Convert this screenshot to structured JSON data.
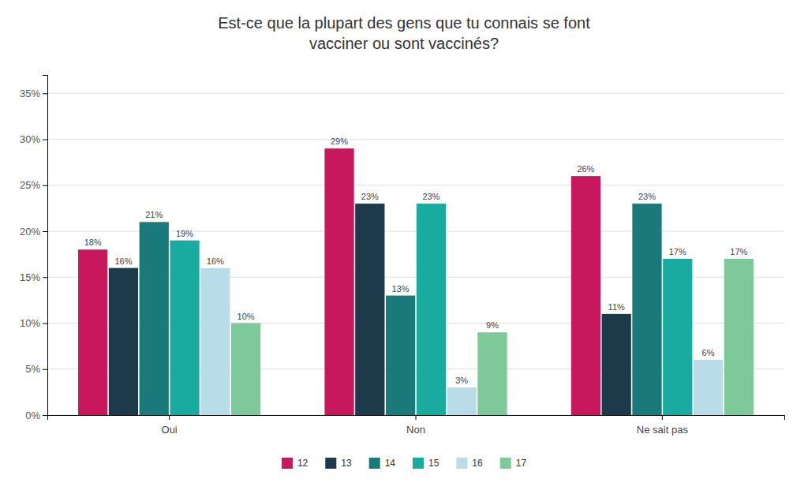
{
  "chart_data": {
    "type": "bar",
    "title": "Est-ce que la plupart des gens que tu connais se font\nvacciner ou sont vaccinés?",
    "categories": [
      "Oui",
      "Non",
      "Ne sait pas"
    ],
    "series": [
      {
        "name": "12",
        "color": "#C8175D",
        "values": [
          18,
          29,
          26
        ],
        "value_labels": [
          "18%",
          "29%",
          "26%"
        ]
      },
      {
        "name": "13",
        "color": "#1C3A4A",
        "values": [
          16,
          23,
          11
        ],
        "value_labels": [
          "16%",
          "23%",
          "11%"
        ]
      },
      {
        "name": "14",
        "color": "#1A7A7A",
        "values": [
          21,
          13,
          23
        ],
        "value_labels": [
          "21%",
          "13%",
          "23%"
        ]
      },
      {
        "name": "15",
        "color": "#1AABA0",
        "values": [
          19,
          23,
          17
        ],
        "value_labels": [
          "19%",
          "23%",
          "17%"
        ]
      },
      {
        "name": "16",
        "color": "#B8DCE8",
        "values": [
          16,
          3,
          6
        ],
        "value_labels": [
          "16%",
          "3%",
          "6%"
        ]
      },
      {
        "name": "17",
        "color": "#7DC99A",
        "values": [
          10,
          9,
          17
        ],
        "value_labels": [
          "10%",
          "9%",
          "17%"
        ]
      }
    ],
    "ylim": [
      0,
      37
    ],
    "yticks": [
      {
        "value": 0,
        "label": "0%"
      },
      {
        "value": 5,
        "label": "5%"
      },
      {
        "value": 10,
        "label": "10%"
      },
      {
        "value": 15,
        "label": "15%"
      },
      {
        "value": 20,
        "label": "20%"
      },
      {
        "value": 25,
        "label": "25%"
      },
      {
        "value": 30,
        "label": "30%"
      },
      {
        "value": 35,
        "label": "35%"
      }
    ],
    "grid": true,
    "data_labels": true,
    "legend": "bottom"
  }
}
